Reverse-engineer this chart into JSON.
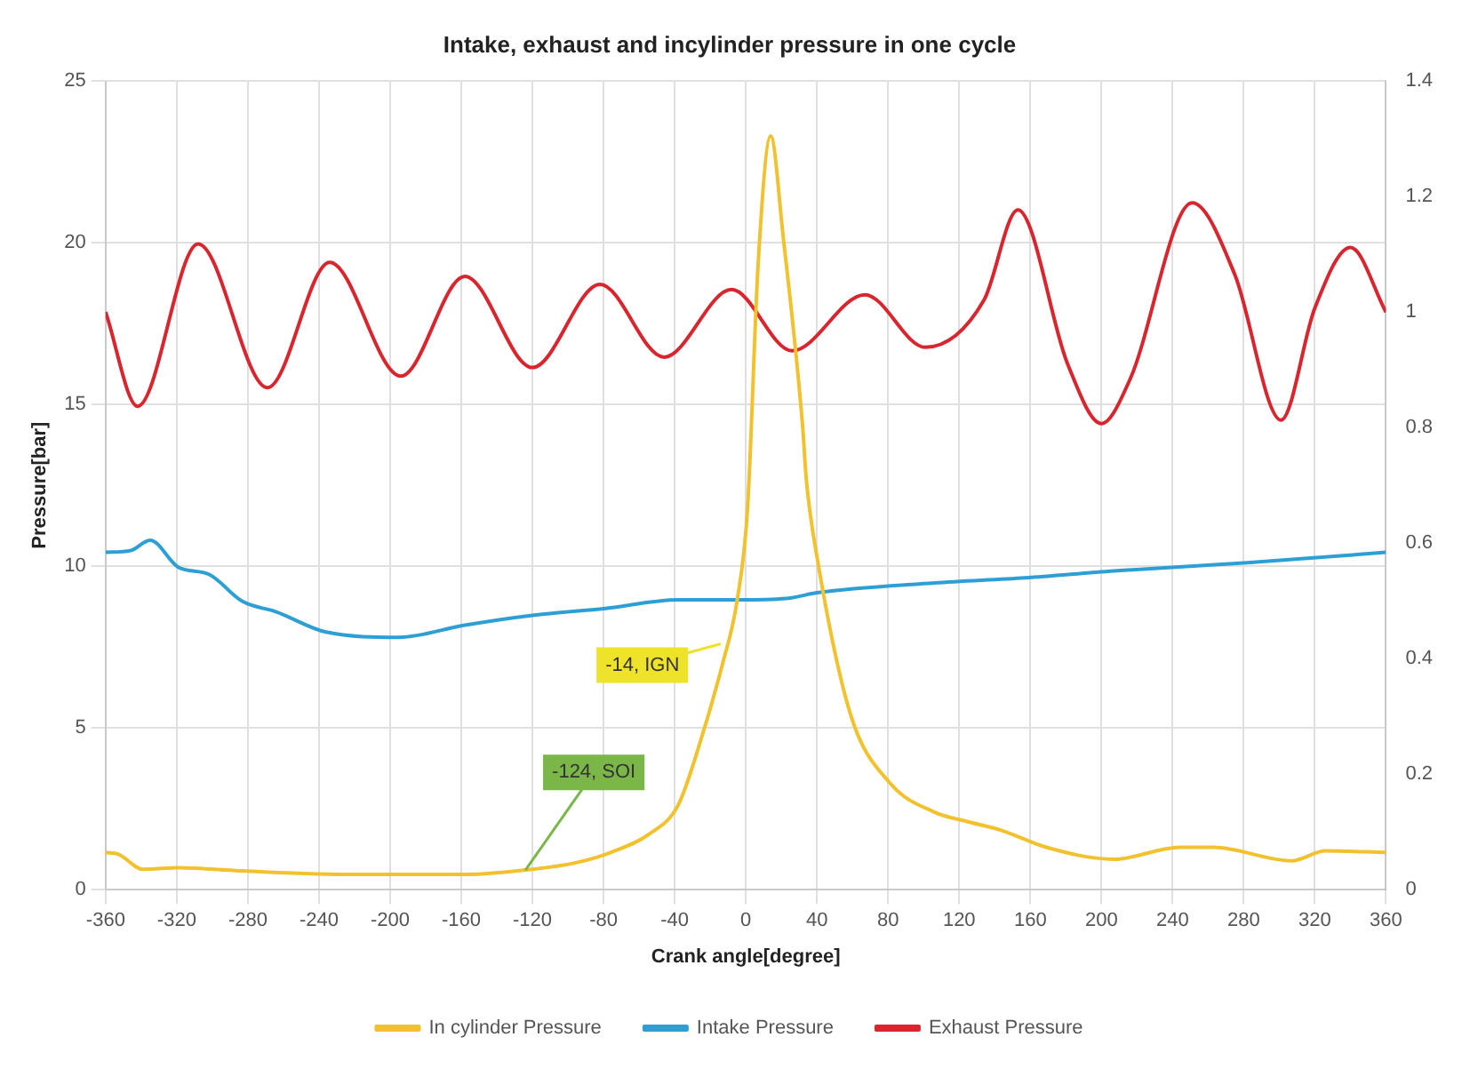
{
  "chart_data": {
    "type": "line",
    "title": "Intake, exhaust and incylinder pressure in one cycle",
    "xlabel": "Crank angle[degree]",
    "ylabel": "Pressure[bar]",
    "xlim": [
      -360,
      360
    ],
    "xticks": [
      -360,
      -320,
      -280,
      -240,
      -200,
      -160,
      -120,
      -80,
      -40,
      0,
      40,
      80,
      120,
      160,
      200,
      240,
      280,
      320,
      360
    ],
    "ylim": [
      0,
      25
    ],
    "yticks": [
      0,
      5,
      10,
      15,
      20,
      25
    ],
    "y2lim": [
      0,
      1.4
    ],
    "y2ticks": [
      0,
      0.2,
      0.4,
      0.6,
      0.8,
      1,
      1.2,
      1.4
    ],
    "grid": true,
    "legend": "bottom",
    "marker": "none",
    "line_style": "solid",
    "series": [
      {
        "name": "In cylinder Pressure",
        "color": "#f2c12e",
        "x": [
          -360,
          -353,
          -339,
          -319,
          -283,
          -220,
          -158,
          -120,
          -95,
          -76,
          -54,
          -38,
          -26,
          -13,
          -5,
          1,
          7,
          14,
          21,
          32,
          34,
          40,
          59,
          81,
          106,
          125,
          144,
          169,
          207,
          244,
          263,
          307,
          326,
          360
        ],
        "values": [
          1.15,
          1.1,
          0.63,
          0.68,
          0.58,
          0.47,
          0.47,
          0.63,
          0.84,
          1.15,
          1.73,
          2.62,
          4.5,
          7.0,
          8.9,
          11.8,
          19.4,
          23.3,
          20.2,
          14.3,
          12.7,
          10.3,
          5.4,
          3.3,
          2.4,
          2.1,
          1.83,
          1.31,
          0.94,
          1.31,
          1.31,
          0.89,
          1.2,
          1.15
        ]
      },
      {
        "name": "Intake Pressure",
        "color": "#2e9fd4",
        "axis": "y2",
        "x": [
          -360,
          -346,
          -335,
          -319,
          -302,
          -283,
          -264,
          -236,
          -195,
          -158,
          -120,
          -79,
          -38,
          -7,
          0,
          25,
          40,
          106,
          157,
          207,
          282,
          360
        ],
        "values": [
          0.584,
          0.587,
          0.605,
          0.558,
          0.546,
          0.499,
          0.481,
          0.446,
          0.437,
          0.458,
          0.475,
          0.487,
          0.502,
          0.502,
          0.502,
          0.505,
          0.514,
          0.531,
          0.54,
          0.552,
          0.566,
          0.584
        ]
      },
      {
        "name": "Exhaust Pressure",
        "color": "#d9262e",
        "axis": "y2",
        "x": [
          -360,
          -342,
          -308,
          -269,
          -234,
          -194,
          -158,
          -120,
          -82,
          -46,
          -8,
          26,
          67,
          101,
          134,
          153,
          181,
          200,
          216,
          251,
          275,
          301,
          320,
          340,
          360
        ],
        "values": [
          1.0,
          0.837,
          1.118,
          0.869,
          1.086,
          0.889,
          1.062,
          0.904,
          1.048,
          0.922,
          1.039,
          0.933,
          1.03,
          0.939,
          1.021,
          1.177,
          0.91,
          0.807,
          0.883,
          1.189,
          1.065,
          0.813,
          1.007,
          1.112,
          1.0
        ]
      }
    ],
    "annotations": [
      {
        "text": "-14, IGN",
        "x": -14,
        "y": 7.6
      },
      {
        "text": "-124, SOI",
        "x": -124,
        "y": 0.6
      }
    ]
  }
}
